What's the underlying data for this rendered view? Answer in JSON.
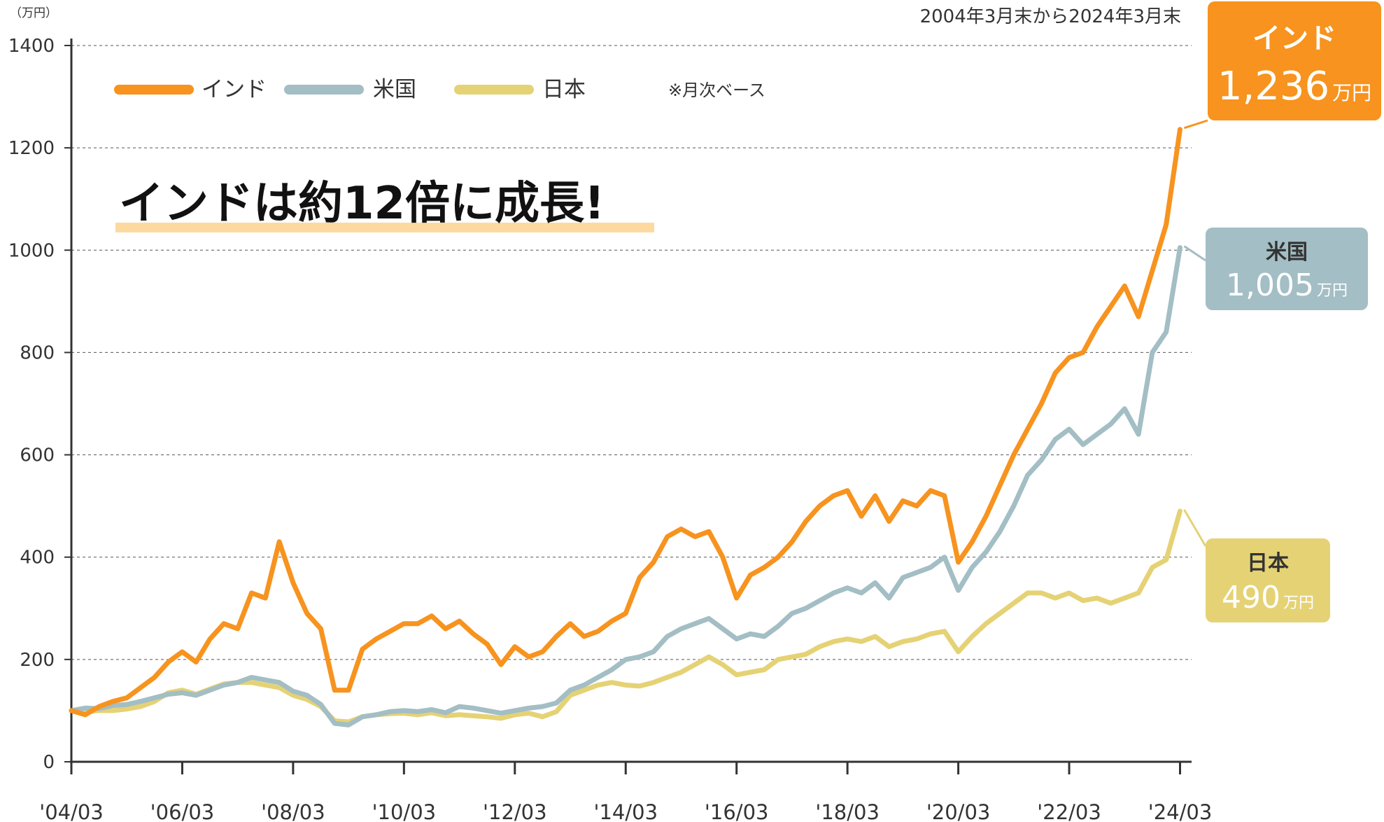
{
  "chart_data": {
    "type": "line",
    "unit_label": "（万円）",
    "period_note": "2004年3月末から2024年3月末",
    "frequency_note": "※月次ベース",
    "headline": "インドは約12倍に成長!",
    "ylim": [
      0,
      1400
    ],
    "y_ticks": [
      "0",
      "200",
      "400",
      "600",
      "800",
      "1000",
      "1200",
      "1400"
    ],
    "x_ticks": [
      "'04/03",
      "'06/03",
      "'08/03",
      "'10/03",
      "'12/03",
      "'14/03",
      "'16/03",
      "'18/03",
      "'20/03",
      "'22/03",
      "'24/03"
    ],
    "grid": true,
    "legend_position": "top-left",
    "series": [
      {
        "name": "インド",
        "color": "#F7931E",
        "end_label": "1,236",
        "end_unit": "万円",
        "x": [
          "2004-03",
          "2004-06",
          "2004-09",
          "2004-12",
          "2005-03",
          "2005-06",
          "2005-09",
          "2005-12",
          "2006-03",
          "2006-06",
          "2006-09",
          "2006-12",
          "2007-03",
          "2007-06",
          "2007-09",
          "2007-12",
          "2008-03",
          "2008-06",
          "2008-09",
          "2008-12",
          "2009-03",
          "2009-06",
          "2009-09",
          "2009-12",
          "2010-03",
          "2010-06",
          "2010-09",
          "2010-12",
          "2011-03",
          "2011-06",
          "2011-09",
          "2011-12",
          "2012-03",
          "2012-06",
          "2012-09",
          "2012-12",
          "2013-03",
          "2013-06",
          "2013-09",
          "2013-12",
          "2014-03",
          "2014-06",
          "2014-09",
          "2014-12",
          "2015-03",
          "2015-06",
          "2015-09",
          "2015-12",
          "2016-03",
          "2016-06",
          "2016-09",
          "2016-12",
          "2017-03",
          "2017-06",
          "2017-09",
          "2017-12",
          "2018-03",
          "2018-06",
          "2018-09",
          "2018-12",
          "2019-03",
          "2019-06",
          "2019-09",
          "2019-12",
          "2020-03",
          "2020-06",
          "2020-09",
          "2020-12",
          "2021-03",
          "2021-06",
          "2021-09",
          "2021-12",
          "2022-03",
          "2022-06",
          "2022-09",
          "2022-12",
          "2023-03",
          "2023-06",
          "2023-09",
          "2023-12",
          "2024-03"
        ],
        "values": [
          100,
          92,
          108,
          118,
          125,
          145,
          165,
          195,
          215,
          195,
          240,
          270,
          260,
          330,
          320,
          430,
          350,
          290,
          260,
          140,
          140,
          220,
          240,
          255,
          270,
          270,
          285,
          260,
          275,
          250,
          230,
          190,
          225,
          205,
          215,
          245,
          270,
          245,
          255,
          275,
          290,
          360,
          390,
          440,
          455,
          440,
          450,
          400,
          320,
          365,
          380,
          400,
          430,
          470,
          500,
          520,
          530,
          480,
          520,
          470,
          510,
          500,
          530,
          520,
          390,
          430,
          480,
          540,
          600,
          650,
          700,
          760,
          790,
          800,
          850,
          890,
          930,
          870,
          960,
          1050,
          1236
        ]
      },
      {
        "name": "米国",
        "color": "#A3BEC4",
        "end_label": "1,005",
        "end_unit": "万円",
        "x": [
          "2004-03",
          "2004-06",
          "2004-09",
          "2004-12",
          "2005-03",
          "2005-06",
          "2005-09",
          "2005-12",
          "2006-03",
          "2006-06",
          "2006-09",
          "2006-12",
          "2007-03",
          "2007-06",
          "2007-09",
          "2007-12",
          "2008-03",
          "2008-06",
          "2008-09",
          "2008-12",
          "2009-03",
          "2009-06",
          "2009-09",
          "2009-12",
          "2010-03",
          "2010-06",
          "2010-09",
          "2010-12",
          "2011-03",
          "2011-06",
          "2011-09",
          "2011-12",
          "2012-03",
          "2012-06",
          "2012-09",
          "2012-12",
          "2013-03",
          "2013-06",
          "2013-09",
          "2013-12",
          "2014-03",
          "2014-06",
          "2014-09",
          "2014-12",
          "2015-03",
          "2015-06",
          "2015-09",
          "2015-12",
          "2016-03",
          "2016-06",
          "2016-09",
          "2016-12",
          "2017-03",
          "2017-06",
          "2017-09",
          "2017-12",
          "2018-03",
          "2018-06",
          "2018-09",
          "2018-12",
          "2019-03",
          "2019-06",
          "2019-09",
          "2019-12",
          "2020-03",
          "2020-06",
          "2020-09",
          "2020-12",
          "2021-03",
          "2021-06",
          "2021-09",
          "2021-12",
          "2022-03",
          "2022-06",
          "2022-09",
          "2022-12",
          "2023-03",
          "2023-06",
          "2023-09",
          "2023-12",
          "2024-03"
        ],
        "values": [
          100,
          105,
          104,
          110,
          112,
          118,
          125,
          132,
          135,
          130,
          140,
          150,
          155,
          165,
          160,
          155,
          138,
          130,
          112,
          75,
          72,
          88,
          92,
          98,
          100,
          98,
          102,
          96,
          108,
          105,
          100,
          95,
          100,
          105,
          108,
          115,
          140,
          150,
          165,
          180,
          200,
          205,
          215,
          245,
          260,
          270,
          280,
          260,
          240,
          250,
          245,
          265,
          290,
          300,
          315,
          330,
          340,
          330,
          350,
          320,
          360,
          370,
          380,
          400,
          335,
          380,
          410,
          450,
          500,
          560,
          590,
          630,
          650,
          620,
          640,
          660,
          690,
          640,
          800,
          840,
          1005
        ]
      },
      {
        "name": "日本",
        "color": "#E5D275",
        "end_label": "490",
        "end_unit": "万円",
        "x": [
          "2004-03",
          "2004-06",
          "2004-09",
          "2004-12",
          "2005-03",
          "2005-06",
          "2005-09",
          "2005-12",
          "2006-03",
          "2006-06",
          "2006-09",
          "2006-12",
          "2007-03",
          "2007-06",
          "2007-09",
          "2007-12",
          "2008-03",
          "2008-06",
          "2008-09",
          "2008-12",
          "2009-03",
          "2009-06",
          "2009-09",
          "2009-12",
          "2010-03",
          "2010-06",
          "2010-09",
          "2010-12",
          "2011-03",
          "2011-06",
          "2011-09",
          "2011-12",
          "2012-03",
          "2012-06",
          "2012-09",
          "2012-12",
          "2013-03",
          "2013-06",
          "2013-09",
          "2013-12",
          "2014-03",
          "2014-06",
          "2014-09",
          "2014-12",
          "2015-03",
          "2015-06",
          "2015-09",
          "2015-12",
          "2016-03",
          "2016-06",
          "2016-09",
          "2016-12",
          "2017-03",
          "2017-06",
          "2017-09",
          "2017-12",
          "2018-03",
          "2018-06",
          "2018-09",
          "2018-12",
          "2019-03",
          "2019-06",
          "2019-09",
          "2019-12",
          "2020-03",
          "2020-06",
          "2020-09",
          "2020-12",
          "2021-03",
          "2021-06",
          "2021-09",
          "2021-12",
          "2022-03",
          "2022-06",
          "2022-09",
          "2022-12",
          "2023-03",
          "2023-06",
          "2023-09",
          "2023-12",
          "2024-03"
        ],
        "values": [
          100,
          98,
          100,
          100,
          103,
          108,
          118,
          135,
          140,
          132,
          142,
          152,
          155,
          155,
          150,
          145,
          130,
          122,
          108,
          80,
          78,
          88,
          92,
          94,
          95,
          92,
          96,
          90,
          92,
          90,
          88,
          85,
          92,
          95,
          88,
          98,
          130,
          140,
          150,
          155,
          150,
          148,
          155,
          165,
          175,
          190,
          205,
          190,
          170,
          175,
          180,
          200,
          205,
          210,
          225,
          235,
          240,
          235,
          245,
          225,
          235,
          240,
          250,
          255,
          215,
          245,
          270,
          290,
          310,
          330,
          330,
          320,
          330,
          315,
          320,
          310,
          320,
          330,
          380,
          395,
          490
        ]
      }
    ]
  }
}
